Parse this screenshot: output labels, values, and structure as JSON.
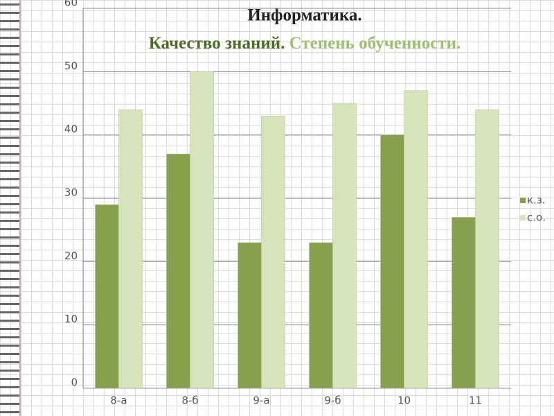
{
  "chart_data": {
    "type": "bar",
    "title": "Информатика.",
    "subtitles": [
      "Качество знаний.",
      "Степень обученности."
    ],
    "subtitle_colors": [
      "#4f6b28",
      "#9fbf72"
    ],
    "categories": [
      "8-а",
      "8-б",
      "9-а",
      "9-б",
      "10",
      "11"
    ],
    "series": [
      {
        "name": "к.з.",
        "color": "#86a04e",
        "values": [
          29,
          37,
          23,
          23,
          40,
          27
        ]
      },
      {
        "name": "с.о.",
        "color": "#d6e3bb",
        "values": [
          44,
          50,
          43,
          45,
          47,
          44
        ]
      }
    ],
    "ylim": [
      0,
      60
    ],
    "yticks": [
      0,
      10,
      20,
      30,
      40,
      50,
      60
    ],
    "grid": true,
    "legend": "right"
  }
}
